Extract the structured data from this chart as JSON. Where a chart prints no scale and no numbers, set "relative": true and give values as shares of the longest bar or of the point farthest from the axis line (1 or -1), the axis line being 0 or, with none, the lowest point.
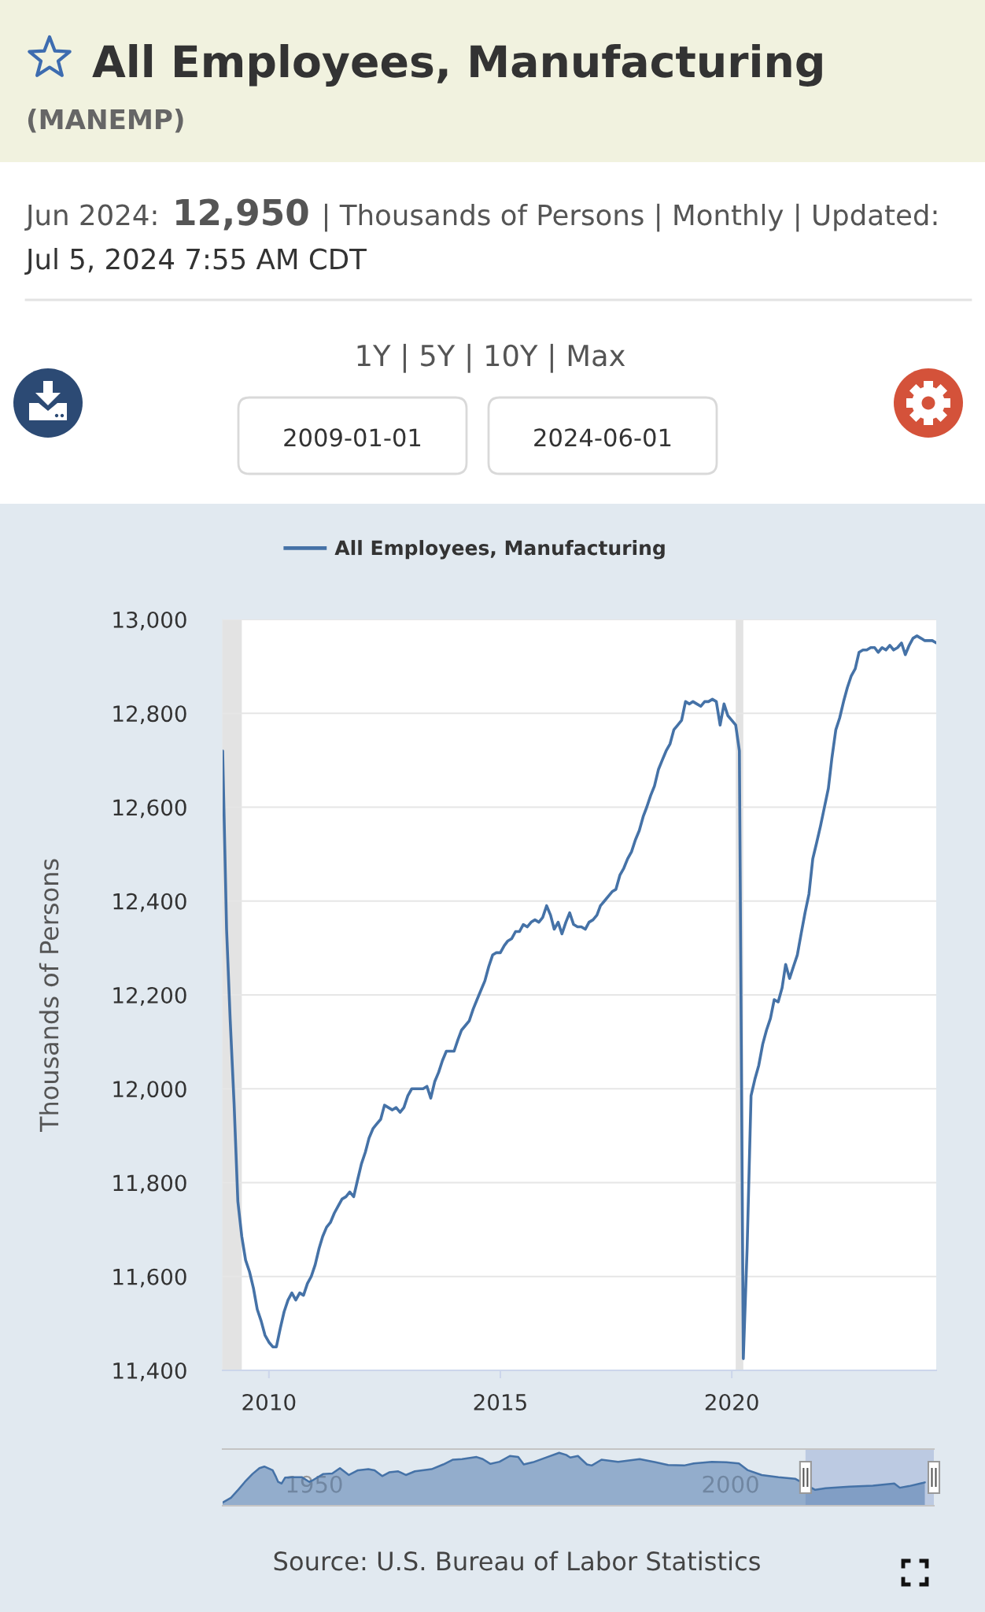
{
  "chart_data": [
    {
      "type": "line",
      "title": "All Employees, Manufacturing",
      "subtitle": "(MANEMP)",
      "ylabel": "Thousands of Persons",
      "annotations": [
        "Jun 2024:",
        "12,950",
        "| Thousands of Persons | Monthly | Updated:",
        "Jul 5, 2024 7:55 AM CDT",
        "1Y | 5Y | 10Y | Max",
        "2009-01-01",
        "2024-06-01",
        "Source: U.S. Bureau of Labor Statistics"
      ],
      "x": [
        "2009-01",
        "2009-02",
        "2009-03",
        "2009-04",
        "2009-05",
        "2009-06",
        "2009-07",
        "2009-08",
        "2009-09",
        "2009-10",
        "2009-11",
        "2009-12",
        "2010-01",
        "2010-02",
        "2010-03",
        "2010-04",
        "2010-05",
        "2010-06",
        "2010-07",
        "2010-08",
        "2010-09",
        "2010-10",
        "2010-11",
        "2010-12",
        "2011-01",
        "2011-02",
        "2011-03",
        "2011-04",
        "2011-05",
        "2011-06",
        "2011-07",
        "2011-08",
        "2011-09",
        "2011-10",
        "2011-11",
        "2011-12",
        "2012-01",
        "2012-02",
        "2012-03",
        "2012-04",
        "2012-05",
        "2012-06",
        "2012-07",
        "2012-08",
        "2012-09",
        "2012-10",
        "2012-11",
        "2012-12",
        "2013-01",
        "2013-02",
        "2013-03",
        "2013-04",
        "2013-05",
        "2013-06",
        "2013-07",
        "2013-08",
        "2013-09",
        "2013-10",
        "2013-11",
        "2013-12",
        "2014-01",
        "2014-02",
        "2014-03",
        "2014-04",
        "2014-05",
        "2014-06",
        "2014-07",
        "2014-08",
        "2014-09",
        "2014-10",
        "2014-11",
        "2014-12",
        "2015-01",
        "2015-02",
        "2015-03",
        "2015-04",
        "2015-05",
        "2015-06",
        "2015-07",
        "2015-08",
        "2015-09",
        "2015-10",
        "2015-11",
        "2015-12",
        "2016-01",
        "2016-02",
        "2016-03",
        "2016-04",
        "2016-05",
        "2016-06",
        "2016-07",
        "2016-08",
        "2016-09",
        "2016-10",
        "2016-11",
        "2016-12",
        "2017-01",
        "2017-02",
        "2017-03",
        "2017-04",
        "2017-05",
        "2017-06",
        "2017-07",
        "2017-08",
        "2017-09",
        "2017-10",
        "2017-11",
        "2017-12",
        "2018-01",
        "2018-02",
        "2018-03",
        "2018-04",
        "2018-05",
        "2018-06",
        "2018-07",
        "2018-08",
        "2018-09",
        "2018-10",
        "2018-11",
        "2018-12",
        "2019-01",
        "2019-02",
        "2019-03",
        "2019-04",
        "2019-05",
        "2019-06",
        "2019-07",
        "2019-08",
        "2019-09",
        "2019-10",
        "2019-11",
        "2019-12",
        "2020-01",
        "2020-02",
        "2020-03",
        "2020-04",
        "2020-05",
        "2020-06",
        "2020-07",
        "2020-08",
        "2020-09",
        "2020-10",
        "2020-11",
        "2020-12",
        "2021-01",
        "2021-02",
        "2021-03",
        "2021-04",
        "2021-05",
        "2021-06",
        "2021-07",
        "2021-08",
        "2021-09",
        "2021-10",
        "2021-11",
        "2021-12",
        "2022-01",
        "2022-02",
        "2022-03",
        "2022-04",
        "2022-05",
        "2022-06",
        "2022-07",
        "2022-08",
        "2022-09",
        "2022-10",
        "2022-11",
        "2022-12",
        "2023-01",
        "2023-02",
        "2023-03",
        "2023-04",
        "2023-05",
        "2023-06",
        "2023-07",
        "2023-08",
        "2023-09",
        "2023-10",
        "2023-11",
        "2023-12",
        "2024-01",
        "2024-02",
        "2024-03",
        "2024-04",
        "2024-05",
        "2024-06"
      ],
      "series": [
        {
          "name": "All Employees, Manufacturing",
          "color": "#4572a7",
          "values": [
            12720,
            12340,
            12150,
            11970,
            11760,
            11685,
            11635,
            11610,
            11575,
            11530,
            11505,
            11475,
            11460,
            11450,
            11450,
            11490,
            11525,
            11550,
            11565,
            11550,
            11565,
            11560,
            11585,
            11600,
            11625,
            11660,
            11685,
            11705,
            11715,
            11735,
            11750,
            11765,
            11770,
            11780,
            11770,
            11805,
            11840,
            11865,
            11895,
            11915,
            11925,
            11935,
            11965,
            11960,
            11955,
            11960,
            11950,
            11960,
            11985,
            12000,
            12000,
            12000,
            12000,
            12005,
            11980,
            12015,
            12035,
            12060,
            12080,
            12080,
            12080,
            12105,
            12125,
            12135,
            12145,
            12170,
            12190,
            12210,
            12230,
            12260,
            12285,
            12290,
            12290,
            12305,
            12315,
            12320,
            12335,
            12335,
            12350,
            12345,
            12355,
            12360,
            12355,
            12365,
            12390,
            12370,
            12340,
            12355,
            12330,
            12355,
            12375,
            12350,
            12345,
            12345,
            12340,
            12355,
            12360,
            12370,
            12390,
            12400,
            12410,
            12420,
            12425,
            12455,
            12470,
            12490,
            12505,
            12530,
            12550,
            12580,
            12600,
            12625,
            12645,
            12680,
            12700,
            12720,
            12735,
            12765,
            12775,
            12785,
            12825,
            12820,
            12825,
            12820,
            12815,
            12825,
            12825,
            12830,
            12825,
            12775,
            12820,
            12795,
            12785,
            12775,
            12720,
            11425,
            11660,
            11985,
            12020,
            12050,
            12095,
            12125,
            12150,
            12190,
            12185,
            12215,
            12265,
            12235,
            12260,
            12285,
            12330,
            12375,
            12415,
            12490,
            12525,
            12560,
            12600,
            12640,
            12705,
            12765,
            12790,
            12825,
            12855,
            12880,
            12895,
            12930,
            12935,
            12935,
            12940,
            12940,
            12930,
            12940,
            12935,
            12945,
            12935,
            12940,
            12950,
            12925,
            12945,
            12960,
            12965,
            12960,
            12955,
            12955,
            12955,
            12950
          ]
        }
      ],
      "xlim": [
        "2009-01",
        "2024-06"
      ],
      "xticks": [
        {
          "value": "2010",
          "label": "2010"
        },
        {
          "value": "2015",
          "label": "2015"
        },
        {
          "value": "2020",
          "label": "2020"
        }
      ],
      "ylim": [
        11400,
        13000
      ],
      "yticks": [
        {
          "value": 11400,
          "label": "11,400"
        },
        {
          "value": 11600,
          "label": "11,600"
        },
        {
          "value": 11800,
          "label": "11,800"
        },
        {
          "value": 12000,
          "label": "12,000"
        },
        {
          "value": 12200,
          "label": "12,200"
        },
        {
          "value": 12400,
          "label": "12,400"
        },
        {
          "value": 12600,
          "label": "12,600"
        },
        {
          "value": 12800,
          "label": "12,800"
        },
        {
          "value": 13000,
          "label": "13,000"
        }
      ],
      "grid": "y",
      "legend": "top left",
      "bands": [
        {
          "axis": "x",
          "from": "2009-01",
          "to": "2009-06",
          "color": "#e3e3e3"
        },
        {
          "axis": "x",
          "from": "2020-02",
          "to": "2020-04",
          "color": "#e3e3e3"
        }
      ]
    },
    {
      "type": "area",
      "relative": true,
      "x": [
        "1939-01",
        "1940-01",
        "1940-12",
        "1941-09",
        "1942-08",
        "1943-06",
        "1944-01",
        "1945-01",
        "1945-06",
        "1945-09",
        "1946-02",
        "1946-07",
        "1947-06",
        "1948-07",
        "1949-06",
        "1949-12",
        "1951-02",
        "1952-03",
        "1953-02",
        "1954-03",
        "1955-04",
        "1956-07",
        "1957-04",
        "1958-03",
        "1959-01",
        "1960-02",
        "1961-01",
        "1962-02",
        "1964-02",
        "1965-07",
        "1966-09",
        "1967-10",
        "1969-07",
        "1970-04",
        "1971-03",
        "1972-04",
        "1973-07",
        "1974-07",
        "1975-03",
        "1976-04",
        "1978-01",
        "1979-06",
        "1980-04",
        "1980-10",
        "1981-09",
        "1982-10",
        "1983-05",
        "1984-07",
        "1986-07",
        "1989-02",
        "1991-01",
        "1992-07",
        "1994-06",
        "1995-08",
        "1997-10",
        "1999-07",
        "2001-01",
        "2002-02",
        "2003-10",
        "2005-10",
        "2007-10",
        "2010-03",
        "2011-06",
        "2014-04",
        "2017-02",
        "2019-09",
        "2020-05",
        "2021-06",
        "2023-02",
        "2023-05"
      ],
      "series": [
        {
          "color": "#4572a7",
          "values": [
            0.06,
            0.15,
            0.31,
            0.45,
            0.6,
            0.71,
            0.74,
            0.67,
            0.54,
            0.45,
            0.42,
            0.53,
            0.54,
            0.54,
            0.45,
            0.49,
            0.6,
            0.61,
            0.71,
            0.58,
            0.67,
            0.69,
            0.67,
            0.56,
            0.63,
            0.65,
            0.58,
            0.65,
            0.69,
            0.78,
            0.87,
            0.88,
            0.92,
            0.88,
            0.79,
            0.83,
            0.94,
            0.92,
            0.78,
            0.82,
            0.92,
            1.0,
            0.96,
            0.91,
            0.94,
            0.78,
            0.76,
            0.87,
            0.83,
            0.88,
            0.82,
            0.77,
            0.76,
            0.8,
            0.83,
            0.82,
            0.8,
            0.67,
            0.58,
            0.54,
            0.51,
            0.3,
            0.33,
            0.36,
            0.38,
            0.42,
            0.34,
            0.37,
            0.43,
            0.44
          ]
        }
      ],
      "xlim": [
        "1939-01",
        "2024-06"
      ],
      "xticks": [
        {
          "value": "1950",
          "label": "1950"
        },
        {
          "value": "2000",
          "label": "2000"
        }
      ],
      "tick_labels": "x",
      "bands": [
        {
          "axis": "x",
          "from": "2009-01",
          "to": "2024-06",
          "color": "#6685c2"
        }
      ]
    }
  ]
}
